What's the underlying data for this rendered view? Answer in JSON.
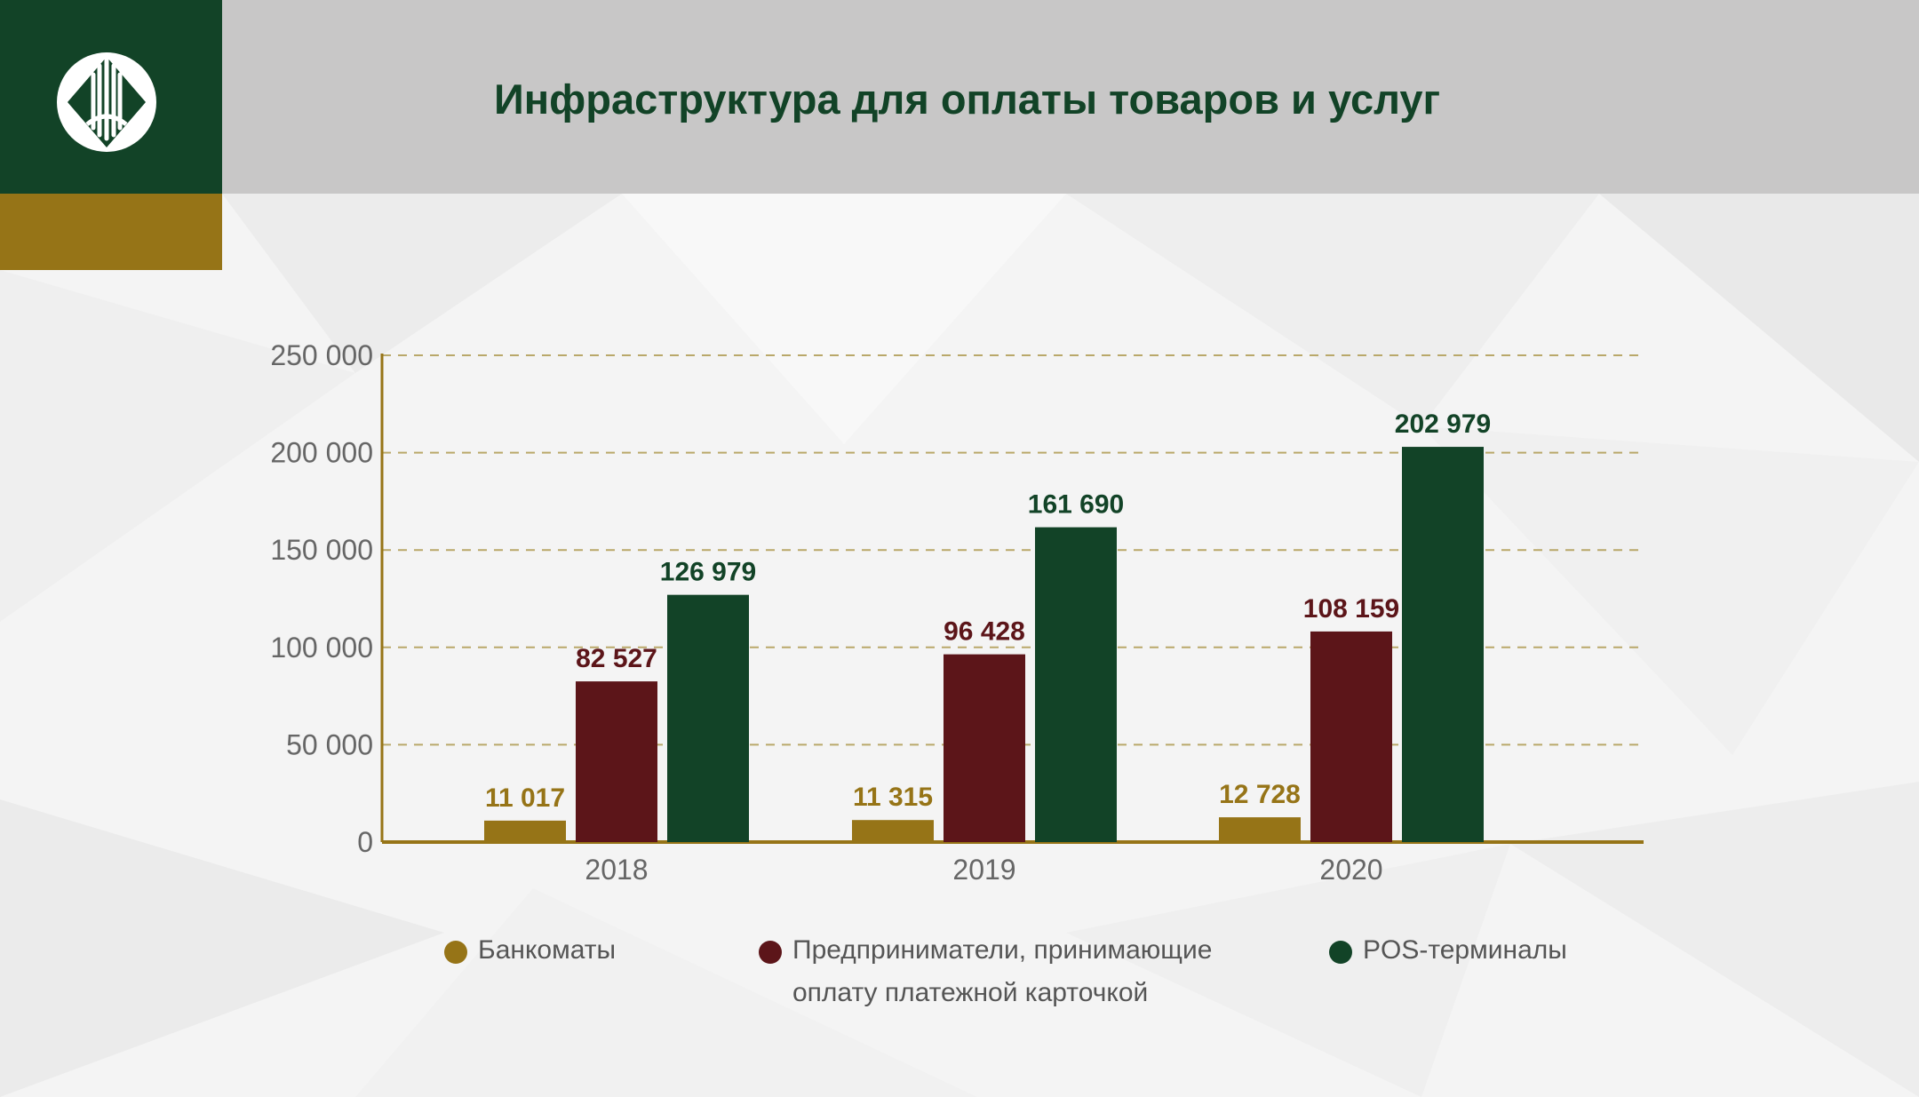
{
  "page": {
    "title": "Инфраструктура для оплаты товаров и услуг"
  },
  "colors": {
    "header_green": "#124327",
    "gold": "#967417",
    "header_gray": "#c8c7c7",
    "atm": "#967417",
    "merchants": "#5c1519",
    "pos": "#124327"
  },
  "logo": {
    "icon": "bank-emblem-icon"
  },
  "chart_data": {
    "type": "bar",
    "categories": [
      "2018",
      "2019",
      "2020"
    ],
    "series": [
      {
        "name": "Банкоматы",
        "values": [
          11017,
          11315,
          12728
        ],
        "labels": [
          "11 017",
          "11 315",
          "12 728"
        ],
        "color": "#967417"
      },
      {
        "name": "Предприниматели, принимающие оплату платежной карточкой",
        "values": [
          82527,
          96428,
          108159
        ],
        "labels": [
          "82 527",
          "96 428",
          "108 159"
        ],
        "color": "#5c1519"
      },
      {
        "name": "POS-терминалы",
        "values": [
          126979,
          161690,
          202979
        ],
        "labels": [
          "126 979",
          "161 690",
          "202 979"
        ],
        "color": "#124327"
      }
    ],
    "ylim": [
      0,
      250000
    ],
    "yticks": [
      0,
      50000,
      100000,
      150000,
      200000,
      250000
    ],
    "ytick_labels": [
      "0",
      "50 000",
      "100 000",
      "150 000",
      "200 000",
      "250 000"
    ],
    "grid": "dashed horizontal",
    "legend": "bottom",
    "xlabel": "",
    "ylabel": ""
  },
  "legend": {
    "atm_label": "Банкоматы",
    "merchants_label_line1": "Предприниматели, принимающие",
    "merchants_label_line2": "оплату платежной карточкой",
    "pos_label": "POS-терминалы"
  }
}
